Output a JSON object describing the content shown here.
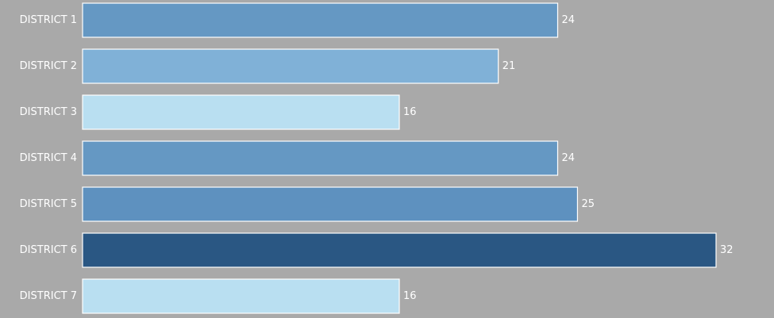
{
  "chart_data": {
    "type": "bar",
    "orientation": "horizontal",
    "categories": [
      "DISTRICT 1",
      "DISTRICT 2",
      "DISTRICT 3",
      "DISTRICT 4",
      "DISTRICT 5",
      "DISTRICT 6",
      "DISTRICT 7"
    ],
    "values": [
      24,
      21,
      16,
      24,
      25,
      32,
      16
    ],
    "xlim": [
      0,
      32
    ],
    "grid": false,
    "legend": "none",
    "colors": {
      "background": "#a9a9a9",
      "label_text": "#ffffff",
      "bar_outline": "#ffffff",
      "bar_colors": [
        "#6598c3",
        "#80b1d7",
        "#b9dff1",
        "#6598c3",
        "#5e91bf",
        "#2a5783",
        "#b9dff1"
      ]
    }
  }
}
